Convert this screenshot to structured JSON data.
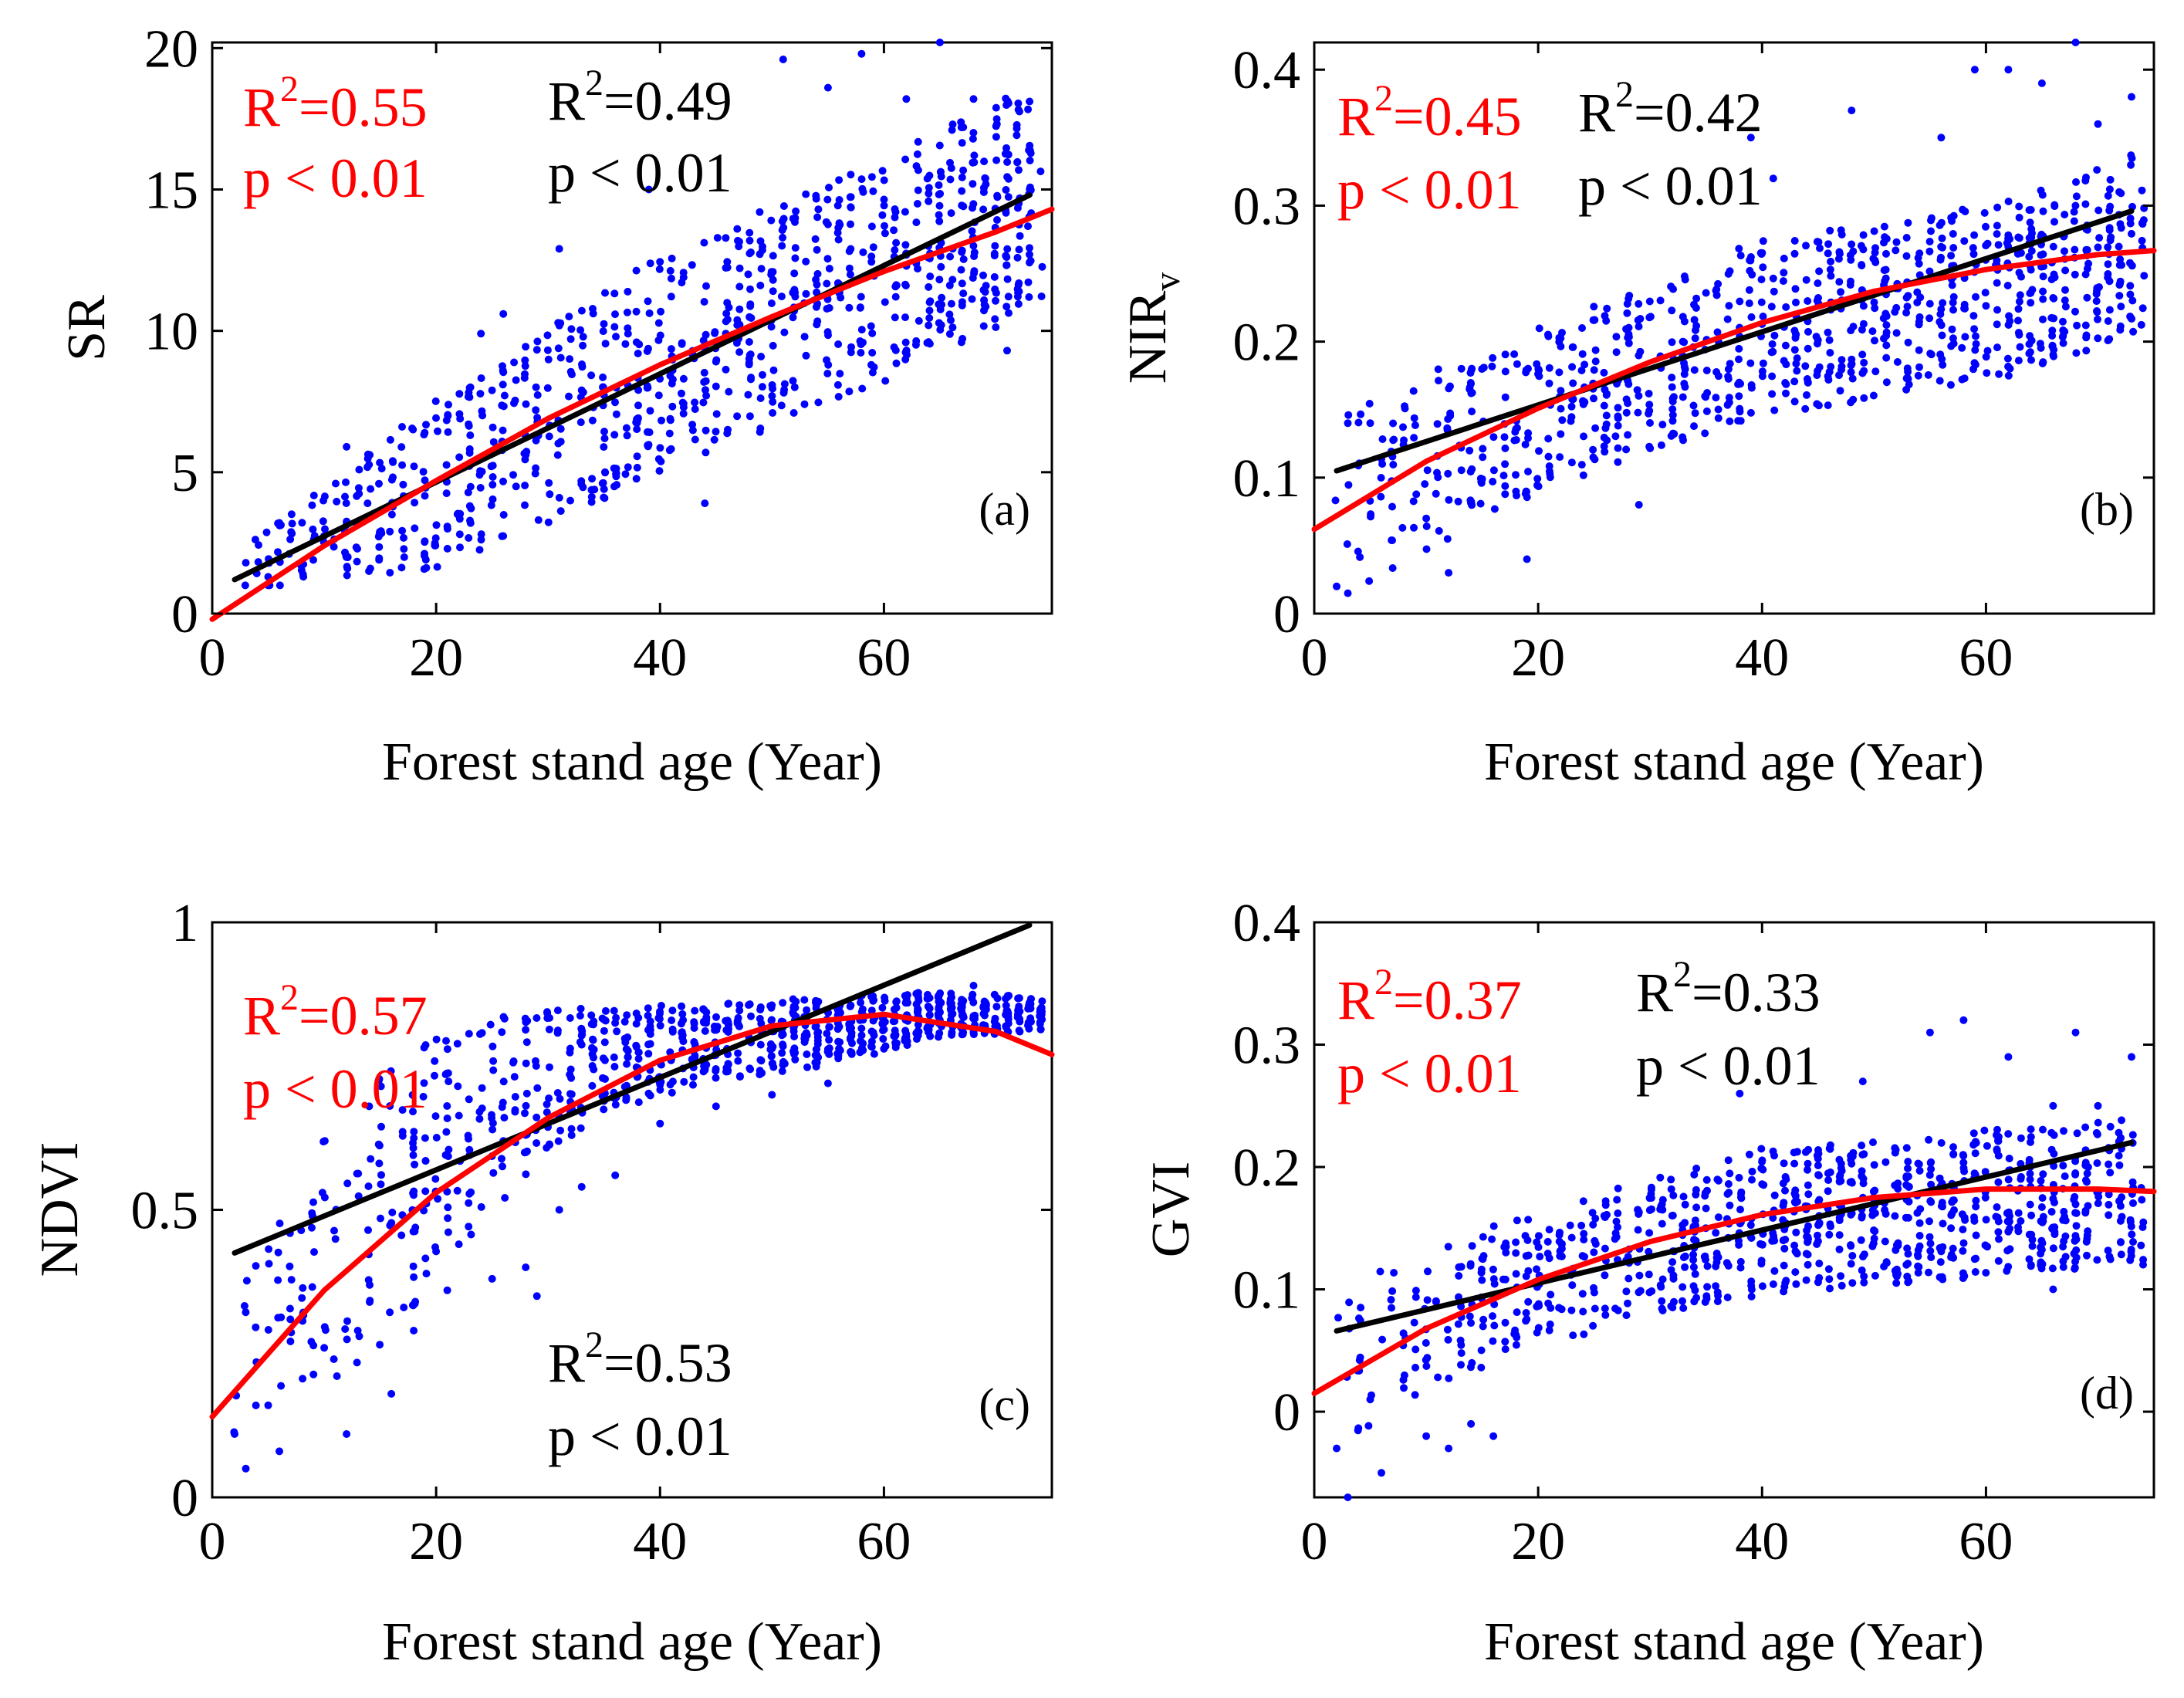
{
  "chart_data": [
    {
      "id": "a",
      "type": "scatter",
      "panel_label": "(a)",
      "xlabel": "Forest stand age (Year)",
      "ylabel": "SR",
      "ylabel_sub": "",
      "xlim": [
        0,
        75
      ],
      "ylim": [
        0,
        20.2
      ],
      "xticks": [
        0,
        20,
        40,
        60
      ],
      "xtick_labels": [
        "0",
        "20",
        "40",
        "60"
      ],
      "yticks": [
        0,
        5,
        10,
        15,
        20
      ],
      "ytick_labels": [
        "0",
        "5",
        "10",
        "15",
        "20"
      ],
      "point_color": "#0000ff",
      "n_points": 900,
      "point_cloud": {
        "x_range": [
          2,
          74
        ],
        "mean_line": [
          [
            2,
            1.3
          ],
          [
            20,
            4.6
          ],
          [
            40,
            8.8
          ],
          [
            60,
            12.2
          ],
          [
            74,
            14.8
          ]
        ],
        "spread": [
          [
            2,
            0.7
          ],
          [
            20,
            3.0
          ],
          [
            40,
            4.0
          ],
          [
            60,
            4.0
          ],
          [
            74,
            4.0
          ]
        ],
        "y_range": [
          1.0,
          20.2
        ],
        "sample_points": [
          [
            3,
            1.8
          ],
          [
            5,
            1.3
          ],
          [
            12,
            5.9
          ],
          [
            14,
            1.5
          ],
          [
            24,
            9.9
          ],
          [
            26,
            10.6
          ],
          [
            31,
            12.9
          ],
          [
            35,
            4.4
          ],
          [
            39,
            15.0
          ],
          [
            44,
            3.9
          ],
          [
            51,
            19.6
          ],
          [
            55,
            18.6
          ],
          [
            58,
            19.8
          ],
          [
            62,
            18.2
          ],
          [
            65,
            20.2
          ],
          [
            68,
            18.2
          ],
          [
            71,
            9.3
          ],
          [
            73,
            12.7
          ]
        ]
      },
      "series": [
        {
          "name": "",
          "kind": "linear fit",
          "color": "#000000",
          "x": [
            2,
            73
          ],
          "y": [
            1.2,
            14.8
          ]
        },
        {
          "name": "",
          "kind": "quadratic fit",
          "color": "#ff0000",
          "x": [
            0,
            10,
            20,
            30,
            40,
            50,
            60,
            70,
            75
          ],
          "y": [
            -0.2,
            2.4,
            4.7,
            6.9,
            8.8,
            10.5,
            12.1,
            13.5,
            14.3
          ]
        }
      ],
      "annotations": [
        {
          "color": "#ff0000",
          "base": "R",
          "sup": "2",
          "rest": "=0.55",
          "p": "p < 0.01"
        },
        {
          "color": "#000000",
          "base": "R",
          "sup": "2",
          "rest": "=0.49",
          "p": "p < 0.01"
        }
      ]
    },
    {
      "id": "b",
      "type": "scatter",
      "panel_label": "(b)",
      "xlabel": "Forest stand age (Year)",
      "ylabel": "NIR",
      "ylabel_sub": "v",
      "xlim": [
        0,
        75
      ],
      "ylim": [
        0,
        0.42
      ],
      "xticks": [
        0,
        20,
        40,
        60
      ],
      "xtick_labels": [
        "0",
        "20",
        "40",
        "60"
      ],
      "yticks": [
        0,
        0.1,
        0.2,
        0.3,
        0.4
      ],
      "ytick_labels": [
        "0",
        "0.1",
        "0.2",
        "0.3",
        "0.4"
      ],
      "point_color": "#0000ff",
      "n_points": 900,
      "point_cloud": {
        "x_range": [
          2,
          74
        ],
        "mean_line": [
          [
            2,
            0.08
          ],
          [
            20,
            0.15
          ],
          [
            40,
            0.21
          ],
          [
            60,
            0.235
          ],
          [
            74,
            0.27
          ]
        ],
        "spread": [
          [
            2,
            0.07
          ],
          [
            20,
            0.06
          ],
          [
            40,
            0.065
          ],
          [
            60,
            0.065
          ],
          [
            74,
            0.07
          ]
        ],
        "y_range": [
          0.01,
          0.42
        ],
        "sample_points": [
          [
            2,
            0.02
          ],
          [
            3,
            0.015
          ],
          [
            3,
            0.14
          ],
          [
            5,
            0.14
          ],
          [
            10,
            0.07
          ],
          [
            12,
            0.03
          ],
          [
            19,
            0.04
          ],
          [
            29,
            0.08
          ],
          [
            39,
            0.35
          ],
          [
            41,
            0.32
          ],
          [
            48,
            0.37
          ],
          [
            56,
            0.35
          ],
          [
            59,
            0.4
          ],
          [
            62,
            0.4
          ],
          [
            65,
            0.39
          ],
          [
            68,
            0.42
          ],
          [
            70,
            0.36
          ],
          [
            73,
            0.38
          ]
        ]
      },
      "series": [
        {
          "name": "",
          "kind": "linear fit",
          "color": "#000000",
          "x": [
            2,
            73
          ],
          "y": [
            0.105,
            0.296
          ]
        },
        {
          "name": "",
          "kind": "quadratic fit",
          "color": "#ff0000",
          "x": [
            0,
            10,
            20,
            30,
            40,
            50,
            60,
            70,
            75
          ],
          "y": [
            0.062,
            0.112,
            0.151,
            0.185,
            0.214,
            0.237,
            0.253,
            0.264,
            0.267
          ]
        }
      ],
      "annotations": [
        {
          "color": "#ff0000",
          "base": "R",
          "sup": "2",
          "rest": "=0.45",
          "p": "p < 0.01"
        },
        {
          "color": "#000000",
          "base": "R",
          "sup": "2",
          "rest": "=0.42",
          "p": "p < 0.01"
        }
      ]
    },
    {
      "id": "c",
      "type": "scatter",
      "panel_label": "(c)",
      "xlabel": "Forest stand age (Year)",
      "ylabel": "NDVI",
      "ylabel_sub": "",
      "xlim": [
        0,
        75
      ],
      "ylim": [
        0,
        1
      ],
      "xticks": [
        0,
        20,
        40,
        60
      ],
      "xtick_labels": [
        "0",
        "20",
        "40",
        "60"
      ],
      "yticks": [
        0,
        0.5,
        1
      ],
      "ytick_labels": [
        "0",
        "0.5",
        "1"
      ],
      "point_color": "#0000ff",
      "n_points": 900,
      "point_cloud": {
        "x_range": [
          2,
          74
        ],
        "mean_line": [
          [
            2,
            0.25
          ],
          [
            15,
            0.5
          ],
          [
            25,
            0.68
          ],
          [
            35,
            0.76
          ],
          [
            45,
            0.79
          ],
          [
            55,
            0.81
          ],
          [
            65,
            0.84
          ],
          [
            74,
            0.84
          ]
        ],
        "spread": [
          [
            2,
            0.18
          ],
          [
            15,
            0.25
          ],
          [
            25,
            0.18
          ],
          [
            35,
            0.09
          ],
          [
            45,
            0.07
          ],
          [
            55,
            0.06
          ],
          [
            65,
            0.04
          ],
          [
            74,
            0.03
          ]
        ],
        "y_range": [
          0.04,
          0.9
        ],
        "sample_points": [
          [
            2,
            0.11
          ],
          [
            3,
            0.05
          ],
          [
            5,
            0.16
          ],
          [
            6,
            0.08
          ],
          [
            10,
            0.26
          ],
          [
            12,
            0.11
          ],
          [
            13,
            0.29
          ],
          [
            16,
            0.18
          ],
          [
            18,
            0.29
          ],
          [
            21,
            0.36
          ],
          [
            25,
            0.38
          ],
          [
            28,
            0.4
          ],
          [
            29,
            0.35
          ],
          [
            31,
            0.5
          ],
          [
            33,
            0.54
          ],
          [
            36,
            0.56
          ],
          [
            40,
            0.65
          ],
          [
            45,
            0.68
          ],
          [
            50,
            0.7
          ],
          [
            55,
            0.72
          ],
          [
            60,
            0.78
          ],
          [
            65,
            0.83
          ],
          [
            68,
            0.89
          ],
          [
            73,
            0.86
          ]
        ]
      },
      "series": [
        {
          "name": "",
          "kind": "linear fit",
          "color": "#000000",
          "x": [
            2,
            73
          ],
          "y": [
            0.425,
            0.995
          ]
        },
        {
          "name": "",
          "kind": "quadratic fit",
          "color": "#ff0000",
          "x": [
            0,
            10,
            20,
            30,
            40,
            50,
            60,
            70,
            75
          ],
          "y": [
            0.14,
            0.36,
            0.53,
            0.66,
            0.76,
            0.82,
            0.84,
            0.81,
            0.77
          ]
        }
      ],
      "annotations": [
        {
          "color": "#ff0000",
          "base": "R",
          "sup": "2",
          "rest": "=0.57",
          "p": "p < 0.01"
        },
        {
          "color": "#000000",
          "base": "R",
          "sup": "2",
          "rest": "=0.53",
          "p": "p < 0.01"
        }
      ]
    },
    {
      "id": "d",
      "type": "scatter",
      "panel_label": "(d)",
      "xlabel": "Forest stand age (Year)",
      "ylabel": "GVI",
      "ylabel_sub": "",
      "xlim": [
        0,
        75
      ],
      "ylim": [
        -0.07,
        0.4
      ],
      "xticks": [
        0,
        20,
        40,
        60
      ],
      "xtick_labels": [
        "0",
        "20",
        "40",
        "60"
      ],
      "yticks": [
        0,
        0.1,
        0.2,
        0.3,
        0.4
      ],
      "ytick_labels": [
        "0",
        "0.1",
        "0.2",
        "0.3",
        "0.4"
      ],
      "point_color": "#0000ff",
      "n_points": 900,
      "point_cloud": {
        "x_range": [
          2,
          74
        ],
        "mean_line": [
          [
            2,
            0.04
          ],
          [
            20,
            0.11
          ],
          [
            40,
            0.155
          ],
          [
            60,
            0.17
          ],
          [
            74,
            0.18
          ]
        ],
        "spread": [
          [
            2,
            0.07
          ],
          [
            20,
            0.055
          ],
          [
            40,
            0.06
          ],
          [
            60,
            0.06
          ],
          [
            74,
            0.06
          ]
        ],
        "y_range": [
          -0.07,
          0.32
        ],
        "sample_points": [
          [
            2,
            -0.03
          ],
          [
            3,
            -0.07
          ],
          [
            5,
            0.01
          ],
          [
            6,
            -0.05
          ],
          [
            10,
            -0.02
          ],
          [
            12,
            -0.03
          ],
          [
            14,
            -0.01
          ],
          [
            16,
            -0.02
          ],
          [
            38,
            0.26
          ],
          [
            49,
            0.27
          ],
          [
            55,
            0.31
          ],
          [
            58,
            0.32
          ],
          [
            62,
            0.29
          ],
          [
            66,
            0.25
          ],
          [
            68,
            0.31
          ],
          [
            70,
            0.25
          ],
          [
            73,
            0.29
          ],
          [
            66,
            0.1
          ]
        ]
      },
      "series": [
        {
          "name": "",
          "kind": "linear fit",
          "color": "#000000",
          "x": [
            2,
            73
          ],
          "y": [
            0.066,
            0.22
          ]
        },
        {
          "name": "",
          "kind": "quadratic fit",
          "color": "#ff0000",
          "x": [
            0,
            10,
            20,
            30,
            40,
            50,
            60,
            70,
            75
          ],
          "y": [
            0.015,
            0.068,
            0.108,
            0.139,
            0.161,
            0.175,
            0.182,
            0.182,
            0.18
          ]
        }
      ],
      "annotations": [
        {
          "color": "#ff0000",
          "base": "R",
          "sup": "2",
          "rest": "=0.37",
          "p": "p < 0.01"
        },
        {
          "color": "#000000",
          "base": "R",
          "sup": "2",
          "rest": "=0.33",
          "p": "p < 0.01"
        }
      ]
    }
  ]
}
